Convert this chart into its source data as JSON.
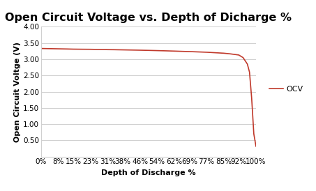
{
  "title": "Open Circuit Voltage vs. Depth of Dicharge %",
  "xlabel": "Depth of Discharge %",
  "ylabel": "Open Circuit Voltge (V)",
  "line_color": "#c0392b",
  "legend_label": "OCV",
  "xtick_labels": [
    "0%",
    "8%",
    "15%",
    "23%",
    "31%",
    "38%",
    "46%",
    "54%",
    "62%",
    "69%",
    "77%",
    "85%",
    "92%",
    "100%"
  ],
  "xtick_values": [
    0,
    8,
    15,
    23,
    31,
    38,
    46,
    54,
    62,
    69,
    77,
    85,
    92,
    100
  ],
  "ylim": [
    0,
    4.0
  ],
  "ytick_values": [
    0.5,
    1.0,
    1.5,
    2.0,
    2.5,
    3.0,
    3.5,
    4.0
  ],
  "ytick_labels": [
    "0.50",
    "1.00",
    "1.50",
    "2.00",
    "2.50",
    "3.00",
    "3.50",
    "4.00"
  ],
  "x": [
    0,
    4,
    8,
    12,
    15,
    19,
    23,
    27,
    31,
    34,
    38,
    42,
    46,
    50,
    54,
    58,
    62,
    65,
    69,
    73,
    77,
    81,
    85,
    88,
    92,
    94,
    96,
    97,
    98,
    99,
    100
  ],
  "y": [
    3.33,
    3.325,
    3.32,
    3.315,
    3.31,
    3.307,
    3.305,
    3.3,
    3.295,
    3.293,
    3.288,
    3.283,
    3.278,
    3.272,
    3.265,
    3.258,
    3.25,
    3.243,
    3.235,
    3.225,
    3.215,
    3.2,
    3.185,
    3.165,
    3.13,
    3.05,
    2.85,
    2.6,
    1.8,
    0.7,
    0.32
  ],
  "background_color": "#ffffff",
  "grid_color": "#d0d0d0",
  "title_fontsize": 11.5,
  "axis_label_fontsize": 8,
  "tick_fontsize": 7.5,
  "legend_fontsize": 8
}
